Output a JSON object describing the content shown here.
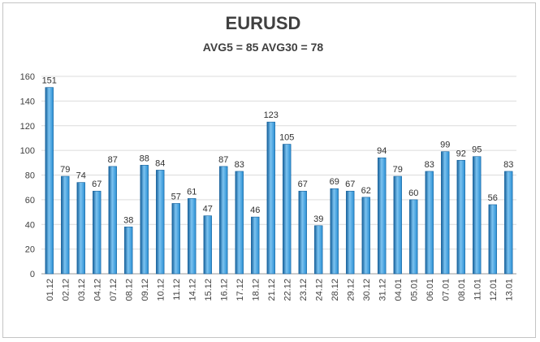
{
  "chart_data": {
    "type": "bar",
    "title": "EURUSD",
    "subtitle": "AVG5 = 85 AVG30 = 78",
    "categories": [
      "01.12",
      "02.12",
      "03.12",
      "04.12",
      "07.12",
      "08.12",
      "09.12",
      "10.12",
      "11.12",
      "14.12",
      "15.12",
      "16.12",
      "17.12",
      "18.12",
      "21.12",
      "22.12",
      "23.12",
      "24.12",
      "28.12",
      "29.12",
      "30.12",
      "31.12",
      "04.01",
      "05.01",
      "06.01",
      "07.01",
      "08.01",
      "11.01",
      "12.01",
      "13.01"
    ],
    "values": [
      151,
      79,
      74,
      67,
      87,
      38,
      88,
      84,
      57,
      61,
      47,
      87,
      83,
      46,
      123,
      105,
      67,
      39,
      69,
      67,
      62,
      94,
      79,
      60,
      83,
      99,
      92,
      95,
      56,
      83
    ],
    "ylim": [
      0,
      160
    ],
    "yticks": [
      0,
      20,
      40,
      60,
      80,
      100,
      120,
      140,
      160
    ],
    "grid": true,
    "legend": "none",
    "xlabel": "",
    "ylabel": "",
    "colors": {
      "bar": "#2a8fd4",
      "bar_dark": "#15609a",
      "bar_light": "#7cc3f0"
    }
  }
}
